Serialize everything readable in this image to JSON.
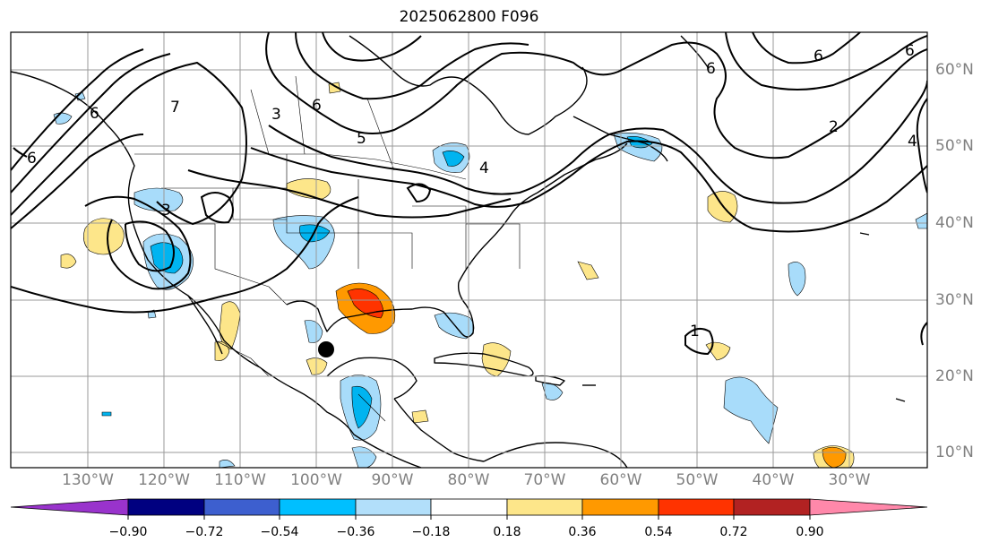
{
  "title": "2025062800 F096",
  "lon_labels": [
    "130°W",
    "120°W",
    "110°W",
    "100°W",
    "90°W",
    "80°W",
    "70°W",
    "60°W",
    "50°W",
    "40°W",
    "30°W"
  ],
  "lat_labels": [
    "60°N",
    "50°N",
    "40°N",
    "30°N",
    "20°N",
    "10°N"
  ],
  "contour_labels": [
    "6",
    "6",
    "3",
    "6",
    "5",
    "4",
    "7",
    "3",
    "2",
    "6",
    "6",
    "4",
    "6",
    "1"
  ],
  "colorbar": {
    "labels": [
      "−0.90",
      "−0.72",
      "−0.54",
      "−0.36",
      "−0.18",
      "0.18",
      "0.36",
      "0.54",
      "0.72",
      "0.90"
    ],
    "colors": [
      "#9933cc",
      "#000080",
      "#3d5fcf",
      "#00bfff",
      "#b2dffa",
      "#ffffff",
      "#fde68a",
      "#ff9900",
      "#ff3300",
      "#b22222",
      "#ff88aa"
    ]
  },
  "palette": {
    "light_blue": "#a8dcfa",
    "blue": "#00b4f0",
    "yellow": "#fde68a",
    "orange": "#ff9900",
    "red": "#ff3300"
  }
}
